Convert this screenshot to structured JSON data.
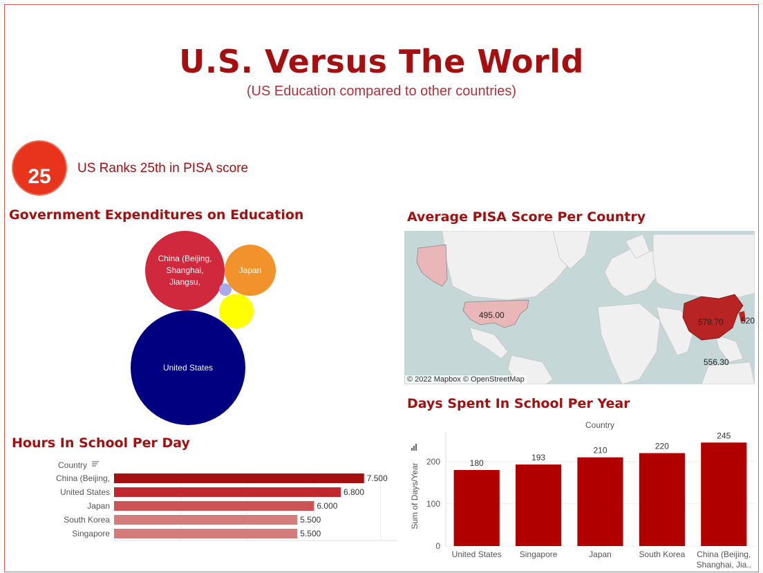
{
  "header": {
    "title": "U.S. Versus The World",
    "subtitle": "(US Education compared to other countries)"
  },
  "rank": {
    "number": "25",
    "text": "US Ranks 25th in PISA score",
    "color": "#e8341c"
  },
  "expenditures": {
    "title": "Government Expenditures on Education",
    "bubbles": [
      {
        "label": "China (Beijing, Shanghai, Jiangsu,",
        "color": "#d0283c"
      },
      {
        "label": "Japan",
        "color": "#f2922a"
      },
      {
        "label": "",
        "color": "#a8a8ea"
      },
      {
        "label": "",
        "color": "#ffff00"
      },
      {
        "label": "United States",
        "color": "#000080"
      }
    ]
  },
  "pisa_map": {
    "title": "Average PISA Score Per Country",
    "labels": [
      "495.00",
      "578.70",
      "520",
      "556.30"
    ],
    "attribution": "© 2022 Mapbox  © OpenStreetMap"
  },
  "hours": {
    "title": "Hours In School Per Day",
    "axis_title": "Country"
  },
  "days": {
    "title": "Days Spent In School Per Year",
    "axis_title": "Country"
  },
  "chart_data": [
    {
      "type": "bar",
      "orientation": "horizontal",
      "title": "Hours In School Per Day",
      "xlabel": "",
      "ylabel": "Country",
      "categories": [
        "China (Beijing,",
        "United States",
        "Japan",
        "South Korea",
        "Singapore"
      ],
      "values": [
        7.5,
        6.8,
        6.0,
        5.5,
        5.5
      ],
      "value_labels": [
        "7.500",
        "6.800",
        "6.000",
        "5.500",
        "5.500"
      ],
      "colors": [
        "#a50f0f",
        "#c0282e",
        "#cc5454",
        "#d47c7c",
        "#d47c7c"
      ],
      "xlim": [
        0,
        8.5
      ],
      "grid": true
    },
    {
      "type": "bar",
      "title": "Days Spent In School Per Year",
      "xlabel": "Country",
      "ylabel": "Sum of Days/Year",
      "categories": [
        "United States",
        "Singapore",
        "Japan",
        "South Korea",
        "China (Beijing, Shanghai, Jia.."
      ],
      "values": [
        180,
        193,
        210,
        220,
        245
      ],
      "yticks": [
        0,
        100,
        200
      ],
      "ylim": [
        0,
        270
      ],
      "color": "#b00000",
      "grid": true
    }
  ]
}
